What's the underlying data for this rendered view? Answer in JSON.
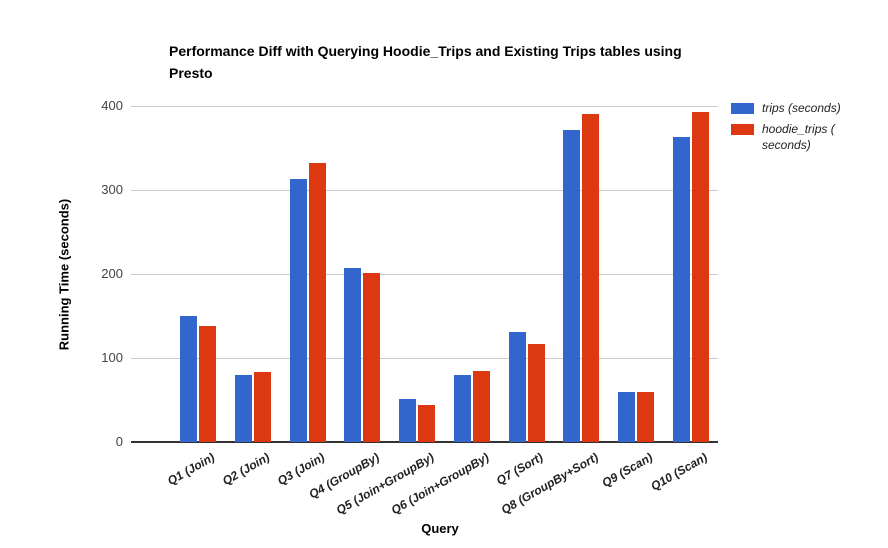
{
  "chart_data": {
    "type": "bar",
    "title": "Performance Diff with Querying Hoodie_Trips and Existing Trips tables using Presto",
    "xlabel": "Query",
    "ylabel": "Running Time (seconds)",
    "ylim": [
      0,
      400
    ],
    "yticks": [
      0,
      100,
      200,
      300,
      400
    ],
    "grid": true,
    "legend_position": "right",
    "categories": [
      "Q1 (Join)",
      "Q2 (Join)",
      "Q3 (Join)",
      "Q4 (GroupBy)",
      "Q5 (Join+GroupBy)",
      "Q6 (Join+GroupBy)",
      "Q7 (Sort)",
      "Q8 (GroupBy+Sort)",
      "Q9 (Scan)",
      "Q10 (Scan)"
    ],
    "series": [
      {
        "name": "trips (seconds)",
        "color": "#3366cc",
        "values": [
          150,
          80,
          313,
          207,
          51,
          80,
          131,
          371,
          60,
          363
        ]
      },
      {
        "name": "hoodie_trips ( seconds)",
        "color": "#dc3912",
        "values": [
          138,
          83,
          332,
          201,
          44,
          85,
          117,
          390,
          59,
          393
        ]
      }
    ]
  },
  "colors": {
    "background": "#ffffff",
    "gridline": "#cccccc",
    "axis_line": "#333333",
    "axis_tick_text": "#444444",
    "label_text": "#222222",
    "title_text": "#000000"
  }
}
